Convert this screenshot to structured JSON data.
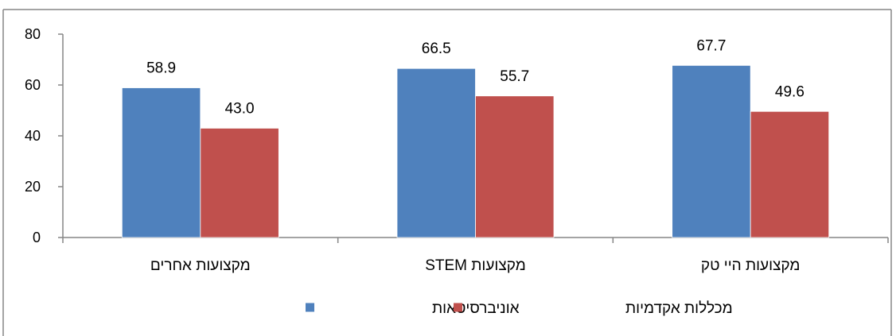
{
  "chart_data": {
    "type": "bar",
    "categories": [
      "מקצועות אחרים",
      "מקצועות STEM",
      "מקצועות היי טק"
    ],
    "series": [
      {
        "name": "אוניברסיטאות",
        "values": [
          58.9,
          66.5,
          67.7
        ],
        "color": "#4F81BD"
      },
      {
        "name": "מכללות אקדמיות",
        "values": [
          43.0,
          55.7,
          49.6
        ],
        "color": "#C0504D"
      }
    ],
    "data_labels": [
      [
        "58.9",
        "66.5",
        "67.7"
      ],
      [
        "43.0",
        "55.7",
        "49.6"
      ]
    ],
    "title": "",
    "xlabel": "",
    "ylabel": "",
    "ylim": [
      0,
      80
    ],
    "yticks": [
      "0",
      "20",
      "40",
      "60",
      "80"
    ],
    "grid": false,
    "legend_position": "bottom"
  }
}
